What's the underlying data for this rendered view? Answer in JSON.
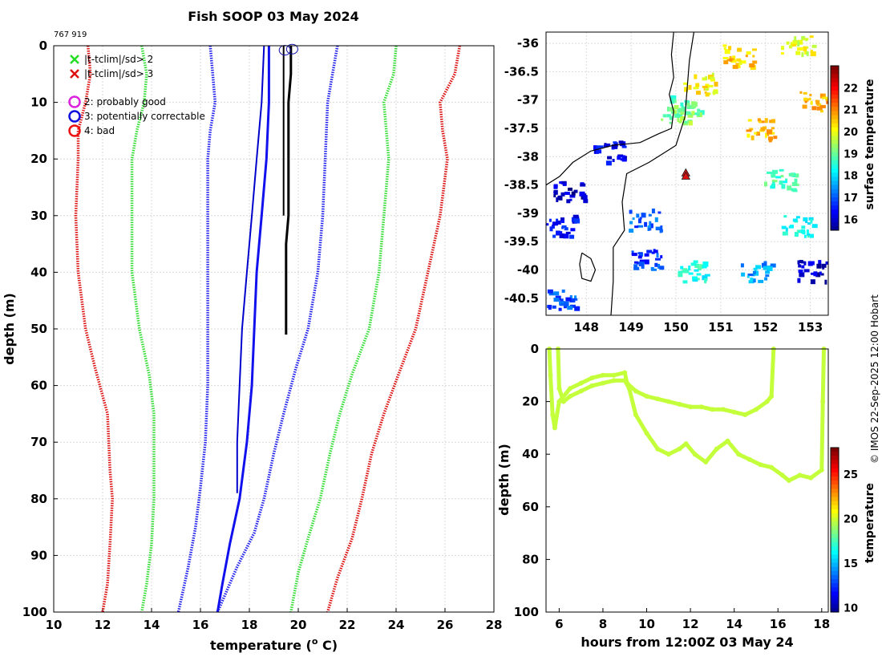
{
  "figure": {
    "title": "Fish SOOP 03 May 2024",
    "id_label": "767 919",
    "credit": "© IMOS 22-Sep-2025 12:00 Hobart"
  },
  "legend": {
    "entries": [
      {
        "marker": "x",
        "color": "#22dd22",
        "label": "|t-tclim|/sd> 2"
      },
      {
        "marker": "x",
        "color": "#dd1111",
        "label": "|t-tclim|/sd> 3"
      },
      {
        "marker": "o",
        "color": "#dd22dd",
        "label": "2: probably good"
      },
      {
        "marker": "o",
        "color": "#1111dd",
        "label": "3: potentially correctable"
      },
      {
        "marker": "o",
        "color": "#ee1111",
        "label": "4: bad"
      }
    ]
  },
  "chart_data": [
    {
      "id": "profile",
      "type": "line",
      "xlabel": "temperature (",
      "xlabel_sup": "o",
      "xlabel_unit": " C)",
      "ylabel": "depth (m)",
      "xlim": [
        10,
        28
      ],
      "ylim": [
        0,
        100
      ],
      "y_reversed": true,
      "grid": true,
      "xticks": [
        10,
        12,
        14,
        16,
        18,
        20,
        22,
        24,
        26,
        28
      ],
      "yticks": [
        0,
        10,
        20,
        30,
        40,
        50,
        60,
        70,
        80,
        90,
        100
      ],
      "series": [
        {
          "name": "climatology -3sd",
          "color": "#dd1111",
          "style": "dotted",
          "points": [
            [
              11.4,
              0
            ],
            [
              11.5,
              5
            ],
            [
              11.3,
              10
            ],
            [
              11.0,
              15
            ],
            [
              11.0,
              20
            ],
            [
              10.9,
              30
            ],
            [
              11.0,
              40
            ],
            [
              11.3,
              50
            ],
            [
              11.7,
              57
            ],
            [
              12.2,
              65
            ],
            [
              12.3,
              75
            ],
            [
              12.4,
              80
            ],
            [
              12.3,
              88
            ],
            [
              12.2,
              95
            ],
            [
              12.0,
              100
            ]
          ]
        },
        {
          "name": "climatology -2sd",
          "color": "#33dd33",
          "style": "dotted",
          "points": [
            [
              13.6,
              0
            ],
            [
              13.8,
              5
            ],
            [
              13.7,
              10
            ],
            [
              13.4,
              15
            ],
            [
              13.2,
              20
            ],
            [
              13.2,
              30
            ],
            [
              13.2,
              40
            ],
            [
              13.5,
              50
            ],
            [
              13.9,
              58
            ],
            [
              14.1,
              65
            ],
            [
              14.1,
              75
            ],
            [
              14.1,
              80
            ],
            [
              14.0,
              88
            ],
            [
              13.8,
              95
            ],
            [
              13.6,
              100
            ]
          ]
        },
        {
          "name": "climatology -1sd",
          "color": "#2222ee",
          "style": "dotted",
          "points": [
            [
              16.4,
              0
            ],
            [
              16.5,
              5
            ],
            [
              16.6,
              10
            ],
            [
              16.4,
              15
            ],
            [
              16.3,
              20
            ],
            [
              16.3,
              30
            ],
            [
              16.3,
              40
            ],
            [
              16.3,
              50
            ],
            [
              16.3,
              60
            ],
            [
              16.2,
              70
            ],
            [
              16.0,
              78
            ],
            [
              15.8,
              85
            ],
            [
              15.5,
              92
            ],
            [
              15.1,
              100
            ]
          ]
        },
        {
          "name": "climatology +1sd",
          "color": "#2222ee",
          "style": "dotted",
          "points": [
            [
              21.6,
              0
            ],
            [
              21.4,
              5
            ],
            [
              21.2,
              10
            ],
            [
              21.1,
              20
            ],
            [
              21.0,
              30
            ],
            [
              20.8,
              40
            ],
            [
              20.4,
              50
            ],
            [
              19.9,
              57
            ],
            [
              19.4,
              65
            ],
            [
              19.0,
              72
            ],
            [
              18.6,
              80
            ],
            [
              18.2,
              86
            ],
            [
              17.5,
              92
            ],
            [
              17.0,
              97
            ],
            [
              16.7,
              100
            ]
          ]
        },
        {
          "name": "climatology +2sd",
          "color": "#33dd33",
          "style": "dotted",
          "points": [
            [
              24.0,
              0
            ],
            [
              23.9,
              5
            ],
            [
              23.5,
              10
            ],
            [
              23.6,
              15
            ],
            [
              23.7,
              20
            ],
            [
              23.5,
              30
            ],
            [
              23.3,
              40
            ],
            [
              22.9,
              50
            ],
            [
              22.2,
              58
            ],
            [
              21.7,
              65
            ],
            [
              21.3,
              72
            ],
            [
              20.9,
              80
            ],
            [
              20.4,
              87
            ],
            [
              20.0,
              93
            ],
            [
              19.7,
              100
            ]
          ]
        },
        {
          "name": "climatology +3sd",
          "color": "#dd1111",
          "style": "dotted",
          "points": [
            [
              26.6,
              0
            ],
            [
              26.4,
              5
            ],
            [
              25.8,
              10
            ],
            [
              25.9,
              15
            ],
            [
              26.1,
              20
            ],
            [
              25.8,
              30
            ],
            [
              25.3,
              40
            ],
            [
              24.8,
              50
            ],
            [
              24.1,
              58
            ],
            [
              23.5,
              65
            ],
            [
              23.0,
              72
            ],
            [
              22.6,
              80
            ],
            [
              22.2,
              87
            ],
            [
              21.6,
              94
            ],
            [
              21.2,
              100
            ]
          ]
        },
        {
          "name": "profile 1",
          "color": "#1111ee",
          "style": "solid",
          "width": 3,
          "points": [
            [
              18.8,
              0
            ],
            [
              18.8,
              10
            ],
            [
              18.7,
              20
            ],
            [
              18.5,
              30
            ],
            [
              18.3,
              40
            ],
            [
              18.2,
              50
            ],
            [
              18.1,
              60
            ],
            [
              17.9,
              70
            ],
            [
              17.6,
              80
            ],
            [
              17.2,
              88
            ],
            [
              16.9,
              95
            ],
            [
              16.7,
              100
            ]
          ]
        },
        {
          "name": "profile 2",
          "color": "#0000cc",
          "style": "solid",
          "width": 2,
          "points": [
            [
              18.6,
              0
            ],
            [
              18.5,
              10
            ],
            [
              18.3,
              20
            ],
            [
              18.1,
              30
            ],
            [
              17.9,
              40
            ],
            [
              17.7,
              50
            ],
            [
              17.6,
              60
            ],
            [
              17.5,
              70
            ],
            [
              17.5,
              79
            ]
          ]
        },
        {
          "name": "profile 3",
          "color": "#000000",
          "style": "solid",
          "width": 3,
          "points": [
            [
              19.7,
              0
            ],
            [
              19.7,
              5
            ],
            [
              19.6,
              10
            ],
            [
              19.6,
              15
            ],
            [
              19.6,
              20
            ],
            [
              19.6,
              30
            ],
            [
              19.5,
              35
            ],
            [
              19.5,
              40
            ],
            [
              19.5,
              45
            ],
            [
              19.5,
              51
            ]
          ]
        },
        {
          "name": "profile 4",
          "color": "#000000",
          "style": "solid",
          "width": 2,
          "points": [
            [
              19.4,
              0
            ],
            [
              19.4,
              10
            ],
            [
              19.4,
              20
            ],
            [
              19.4,
              30
            ]
          ]
        }
      ],
      "flag_points": [
        [
          19.45,
          0.8
        ],
        [
          19.75,
          0.6
        ]
      ]
    },
    {
      "id": "map",
      "type": "heatmap",
      "xlim": [
        147.1,
        153.4
      ],
      "ylim": [
        -40.8,
        -35.8
      ],
      "xticks": [
        148,
        149,
        150,
        151,
        152,
        153
      ],
      "yticks": [
        -36,
        -36.5,
        -37,
        -37.5,
        -38,
        -38.5,
        -39,
        -39.5,
        -40,
        -40.5
      ],
      "colorbar_label": "surface temperature",
      "colorbar_ticks": [
        16,
        17,
        18,
        19,
        20,
        21,
        22
      ],
      "clim": [
        15.5,
        23
      ],
      "marker": {
        "lon": 150.22,
        "lat": -38.3
      },
      "sst_patches": [
        {
          "lon": 152.7,
          "lat": -36.0,
          "t": 20.0
        },
        {
          "lon": 151.4,
          "lat": -36.2,
          "t": 20.5
        },
        {
          "lon": 150.5,
          "lat": -36.7,
          "t": 20.2
        },
        {
          "lon": 150.2,
          "lat": -37.1,
          "t": 19.0
        },
        {
          "lon": 150.0,
          "lat": -37.2,
          "t": 19.3
        },
        {
          "lon": 151.9,
          "lat": -37.5,
          "t": 20.6
        },
        {
          "lon": 153.1,
          "lat": -37.0,
          "t": 20.8
        },
        {
          "lon": 148.5,
          "lat": -37.9,
          "t": 16.3
        },
        {
          "lon": 147.6,
          "lat": -38.6,
          "t": 16.0
        },
        {
          "lon": 147.4,
          "lat": -39.2,
          "t": 16.5
        },
        {
          "lon": 149.3,
          "lat": -39.1,
          "t": 17.1
        },
        {
          "lon": 149.3,
          "lat": -39.8,
          "t": 16.9
        },
        {
          "lon": 147.4,
          "lat": -40.5,
          "t": 17.0
        },
        {
          "lon": 150.4,
          "lat": -40.0,
          "t": 18.5
        },
        {
          "lon": 151.8,
          "lat": -40.0,
          "t": 17.6
        },
        {
          "lon": 153.0,
          "lat": -40.0,
          "t": 16.0
        },
        {
          "lon": 152.7,
          "lat": -39.2,
          "t": 18.5
        },
        {
          "lon": 152.3,
          "lat": -38.4,
          "t": 18.8
        }
      ]
    },
    {
      "id": "timeseries",
      "type": "scatter",
      "xlabel": "hours from 12:00Z 03 May 24",
      "ylabel": "depth (m)",
      "xlim": [
        5.4,
        18.3
      ],
      "ylim": [
        0,
        100
      ],
      "y_reversed": true,
      "xticks": [
        6,
        8,
        10,
        12,
        14,
        16,
        18
      ],
      "yticks": [
        0,
        20,
        40,
        60,
        80,
        100
      ],
      "colorbar_label": "temperature",
      "colorbar_ticks": [
        10,
        15,
        20,
        25
      ],
      "clim": [
        9.5,
        28
      ],
      "series_temperature": 20,
      "series": [
        {
          "name": "deployment A",
          "points": [
            [
              5.55,
              0
            ],
            [
              5.6,
              10
            ],
            [
              5.7,
              25
            ],
            [
              5.8,
              30
            ],
            [
              6.0,
              20
            ],
            [
              6.5,
              15
            ],
            [
              7.0,
              13
            ],
            [
              7.5,
              11
            ],
            [
              8.0,
              10
            ],
            [
              8.5,
              10
            ],
            [
              9.0,
              9
            ],
            [
              9.1,
              13
            ],
            [
              9.5,
              16
            ],
            [
              10,
              18
            ],
            [
              10.5,
              19
            ],
            [
              11,
              20
            ],
            [
              11.5,
              21
            ],
            [
              12,
              22
            ],
            [
              12.5,
              22
            ],
            [
              13,
              23
            ],
            [
              13.5,
              23
            ],
            [
              14,
              24
            ],
            [
              14.5,
              25
            ],
            [
              15,
              23
            ],
            [
              15.5,
              20
            ],
            [
              15.7,
              18
            ],
            [
              15.8,
              0
            ]
          ]
        },
        {
          "name": "deployment B",
          "points": [
            [
              5.95,
              0
            ],
            [
              6.0,
              15
            ],
            [
              6.2,
              20
            ],
            [
              6.5,
              18
            ],
            [
              7.0,
              16
            ],
            [
              7.5,
              14
            ],
            [
              8.0,
              13
            ],
            [
              8.5,
              12
            ],
            [
              9.0,
              12
            ],
            [
              9.2,
              15
            ],
            [
              9.5,
              25
            ],
            [
              10,
              32
            ],
            [
              10.5,
              38
            ],
            [
              11,
              40
            ],
            [
              11.5,
              38
            ],
            [
              11.8,
              36
            ],
            [
              12.2,
              40
            ],
            [
              12.7,
              43
            ],
            [
              13.2,
              38
            ],
            [
              13.7,
              35
            ],
            [
              14.2,
              40
            ],
            [
              14.7,
              42
            ],
            [
              15.2,
              44
            ],
            [
              15.7,
              45
            ],
            [
              16.2,
              48
            ],
            [
              16.5,
              50
            ],
            [
              17,
              48
            ],
            [
              17.5,
              49
            ],
            [
              18,
              46
            ],
            [
              18.05,
              20
            ],
            [
              18.1,
              0
            ]
          ]
        }
      ]
    }
  ]
}
